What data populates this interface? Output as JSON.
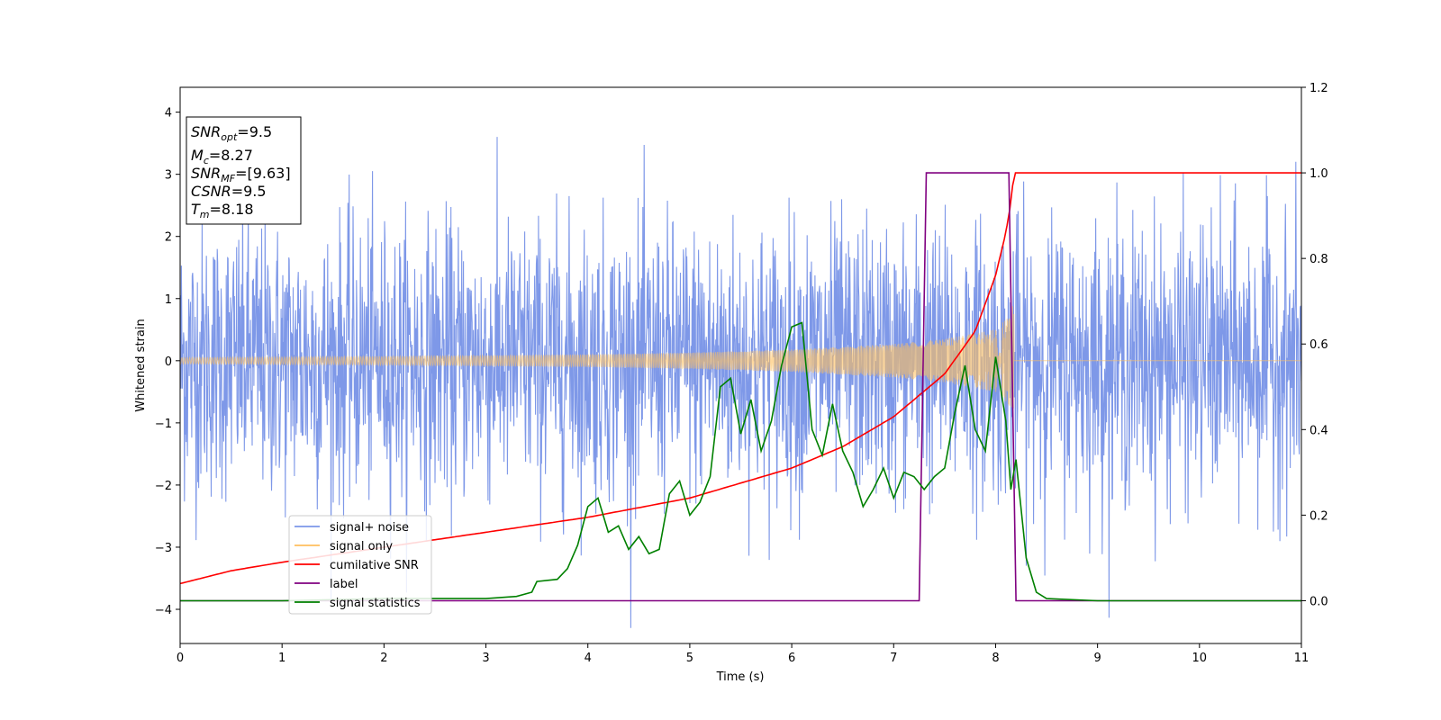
{
  "chart_data": {
    "type": "line",
    "title": "",
    "xlabel": "Time (s)",
    "ylabel": "Whitened strain",
    "xlim": [
      0,
      11
    ],
    "ylim": [
      -4.55,
      4.4
    ],
    "y2lim": [
      -0.1,
      1.2
    ],
    "xticks": [
      "0",
      "1",
      "2",
      "3",
      "4",
      "5",
      "6",
      "7",
      "8",
      "9",
      "10",
      "11"
    ],
    "yticks": [
      "−4",
      "−3",
      "−2",
      "−1",
      "0",
      "1",
      "2",
      "3",
      "4"
    ],
    "y2ticks": [
      "0.0",
      "0.2",
      "0.4",
      "0.6",
      "0.8",
      "1.0",
      "1.2"
    ],
    "grid": false,
    "legend_position": "lower-left",
    "info_box": [
      {
        "main": "SNR",
        "sub": "opt",
        "rest": "=9.5"
      },
      {
        "main": "M",
        "sub": "c",
        "rest": "=8.27"
      },
      {
        "main": "SNR",
        "sub": "MF",
        "rest": "=[9.63]"
      },
      {
        "main": "CSNR",
        "sub": "",
        "rest": "=9.5"
      },
      {
        "main": "T",
        "sub": "m",
        "rest": "=8.18"
      }
    ],
    "series": [
      {
        "name": "signal+ noise",
        "color": "#7b96e8",
        "axis": "left",
        "noise_std": 1.1,
        "x_range": [
          0,
          11
        ]
      },
      {
        "name": "signal only",
        "color": "#ffbf5e",
        "axis": "left",
        "merger_time": 8.18,
        "amplitude_envelope": {
          "x": [
            0,
            2,
            4,
            5,
            6,
            7,
            7.5,
            8,
            8.15,
            8.18
          ],
          "y": [
            0.05,
            0.07,
            0.1,
            0.13,
            0.18,
            0.27,
            0.35,
            0.5,
            0.75,
            1.05
          ]
        }
      },
      {
        "name": "cumilative SNR",
        "color": "#ff0000",
        "axis": "right",
        "x": [
          0,
          0.5,
          1,
          2,
          3,
          4,
          5,
          6,
          6.5,
          7,
          7.5,
          7.8,
          8.0,
          8.1,
          8.15,
          8.18,
          11
        ],
        "y": [
          0.04,
          0.07,
          0.09,
          0.125,
          0.16,
          0.195,
          0.24,
          0.31,
          0.36,
          0.43,
          0.53,
          0.63,
          0.76,
          0.86,
          0.93,
          1.0,
          1.0
        ]
      },
      {
        "name": "label",
        "color": "#800080",
        "axis": "right",
        "x": [
          0,
          7.25,
          7.32,
          8.13,
          8.2,
          11
        ],
        "y": [
          0,
          0,
          1,
          1,
          0,
          0
        ]
      },
      {
        "name": "signal statistics",
        "color": "#008000",
        "axis": "right",
        "x": [
          0,
          1,
          2,
          3,
          3.3,
          3.45,
          3.5,
          3.7,
          3.8,
          3.9,
          4.0,
          4.1,
          4.2,
          4.3,
          4.4,
          4.5,
          4.6,
          4.7,
          4.8,
          4.9,
          5.0,
          5.1,
          5.2,
          5.3,
          5.4,
          5.5,
          5.6,
          5.7,
          5.8,
          5.9,
          6.0,
          6.1,
          6.2,
          6.3,
          6.4,
          6.5,
          6.6,
          6.7,
          6.8,
          6.9,
          7.0,
          7.1,
          7.2,
          7.3,
          7.4,
          7.5,
          7.6,
          7.7,
          7.8,
          7.9,
          8.0,
          8.1,
          8.15,
          8.2,
          8.3,
          8.4,
          8.5,
          9,
          11
        ],
        "y": [
          0.0,
          0.0,
          0.005,
          0.005,
          0.01,
          0.02,
          0.045,
          0.05,
          0.075,
          0.13,
          0.22,
          0.24,
          0.16,
          0.175,
          0.12,
          0.15,
          0.11,
          0.12,
          0.25,
          0.28,
          0.2,
          0.23,
          0.29,
          0.5,
          0.52,
          0.39,
          0.47,
          0.35,
          0.42,
          0.55,
          0.64,
          0.65,
          0.4,
          0.34,
          0.46,
          0.35,
          0.3,
          0.22,
          0.26,
          0.31,
          0.24,
          0.3,
          0.29,
          0.26,
          0.29,
          0.31,
          0.44,
          0.55,
          0.4,
          0.35,
          0.57,
          0.42,
          0.26,
          0.33,
          0.1,
          0.02,
          0.005,
          0.0,
          0.0
        ]
      }
    ]
  }
}
